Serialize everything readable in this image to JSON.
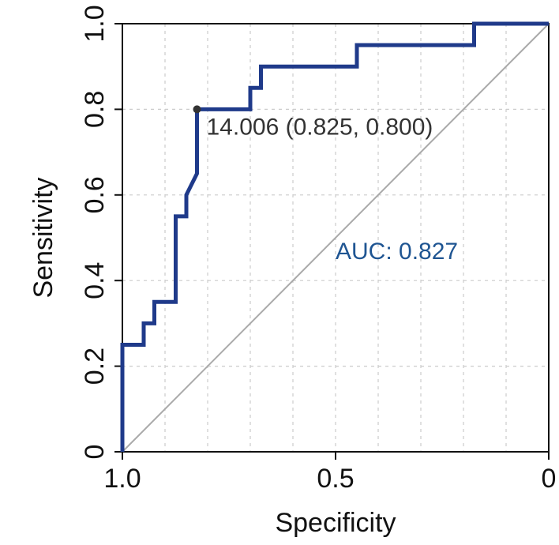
{
  "chart_data": {
    "type": "line",
    "title": "",
    "xlabel": "Specificity",
    "ylabel": "Sensitivity",
    "xlim": [
      1.0,
      0.0
    ],
    "ylim": [
      0.0,
      1.0
    ],
    "x_ticks": [
      1.0,
      0.5,
      0.0
    ],
    "x_tick_labels": [
      "1.0",
      "0.5",
      "0"
    ],
    "y_ticks": [
      0.0,
      0.2,
      0.4,
      0.6,
      0.8,
      1.0
    ],
    "y_tick_labels": [
      "0",
      "0.2",
      "0.4",
      "0.6",
      "0.8",
      "1.0"
    ],
    "grid": true,
    "grid_x": [
      0.9,
      0.8,
      0.7,
      0.6,
      0.5,
      0.4,
      0.3,
      0.2,
      0.1
    ],
    "grid_y": [
      0.2,
      0.4,
      0.6,
      0.8
    ],
    "series": [
      {
        "name": "ROC curve",
        "color": "#1f3a8a",
        "points": [
          [
            1.0,
            0.0
          ],
          [
            1.0,
            0.25
          ],
          [
            0.95,
            0.25
          ],
          [
            0.95,
            0.3
          ],
          [
            0.925,
            0.3
          ],
          [
            0.925,
            0.35
          ],
          [
            0.875,
            0.35
          ],
          [
            0.875,
            0.55
          ],
          [
            0.85,
            0.55
          ],
          [
            0.85,
            0.6
          ],
          [
            0.825,
            0.65
          ],
          [
            0.825,
            0.8
          ],
          [
            0.7,
            0.8
          ],
          [
            0.7,
            0.85
          ],
          [
            0.675,
            0.85
          ],
          [
            0.675,
            0.9
          ],
          [
            0.45,
            0.9
          ],
          [
            0.45,
            0.95
          ],
          [
            0.175,
            0.95
          ],
          [
            0.175,
            1.0
          ],
          [
            0.0,
            1.0
          ]
        ]
      },
      {
        "name": "reference diagonal",
        "color": "#aaaaaa",
        "points": [
          [
            1.0,
            0.0
          ],
          [
            0.0,
            1.0
          ]
        ]
      }
    ],
    "threshold": {
      "specificity": 0.825,
      "sensitivity": 0.8,
      "label": "14.006 (0.825, 0.800)",
      "color": "#333333"
    },
    "auc_label": "AUC: 0.827",
    "auc_color": "#1f5592"
  }
}
